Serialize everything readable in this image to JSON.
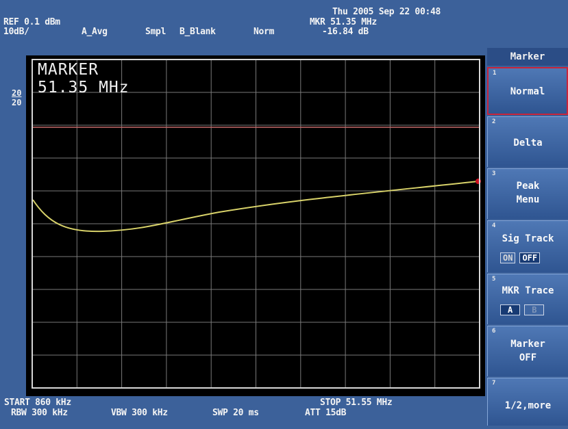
{
  "header": {
    "datetime": "Thu 2005 Sep 22 00:48",
    "ref": "REF 0.1 dBm",
    "scale": "10dB/",
    "avg": "A_Avg",
    "sample": "Smpl",
    "blank": "B_Blank",
    "norm": "Norm",
    "marker_freq": "MKR 51.35 MHz",
    "marker_level": "-16.84 dB"
  },
  "plot": {
    "marker_title": "MARKER",
    "marker_value": "51.35 MHz",
    "ref_line_label_top": "20",
    "ref_line_label_bottom": "20",
    "colors": {
      "trace": "#d9d36a",
      "ref_line": "#c86a6a",
      "grid": "#7a7a7a",
      "marker": "#cc1020"
    }
  },
  "softkeys": {
    "title": "Marker",
    "items": [
      {
        "num": "1",
        "label": "Normal"
      },
      {
        "num": "2",
        "label": "Delta"
      },
      {
        "num": "3",
        "line1": "Peak",
        "line2": "Menu"
      },
      {
        "num": "4",
        "label": "Sig Track",
        "on": "ON",
        "off": "OFF"
      },
      {
        "num": "5",
        "label": "MKR Trace",
        "a": "A",
        "b": "B"
      },
      {
        "num": "6",
        "line1": "Marker",
        "line2": "OFF"
      },
      {
        "num": "7",
        "label": "1/2,more"
      }
    ]
  },
  "footer": {
    "start": "START 860 kHz",
    "stop": "STOP 51.55 MHz",
    "rbw": "RBW 300 kHz",
    "vbw": "VBW 300 kHz",
    "swp": "SWP 20 ms",
    "att": "ATT 15dB"
  }
}
